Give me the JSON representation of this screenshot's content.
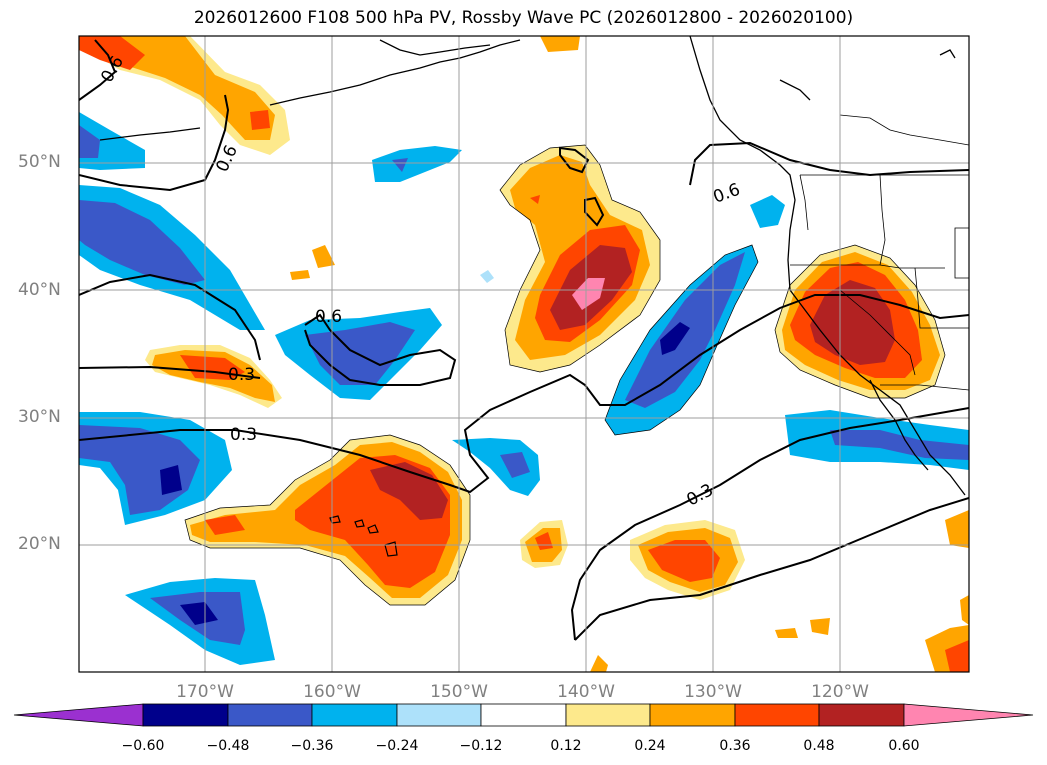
{
  "title": "2026012600 F108 500 hPa PV, Rossby Wave PC (2026012800 - 2026020100)",
  "lat_labels": [
    "50°N",
    "40°N",
    "30°N",
    "20°N"
  ],
  "lon_labels": [
    "170°W",
    "160°W",
    "150°W",
    "140°W",
    "130°W",
    "120°W"
  ],
  "contour_labels": [
    "0.6",
    "0.6",
    "0.6",
    "0.6",
    "0.3",
    "0.3",
    "0.3"
  ],
  "colorbar": {
    "ticks": [
      "−0.60",
      "−0.48",
      "−0.36",
      "−0.24",
      "−0.12",
      "0.12",
      "0.24",
      "0.36",
      "0.48",
      "0.60"
    ],
    "colors": [
      "#9b30d0",
      "#00008b",
      "#3a58c8",
      "#00b2ee",
      "#ade1fa",
      "#ffffff",
      "#fde98c",
      "#ffa500",
      "#ff4500",
      "#b22222",
      "#ff85b0"
    ]
  }
}
